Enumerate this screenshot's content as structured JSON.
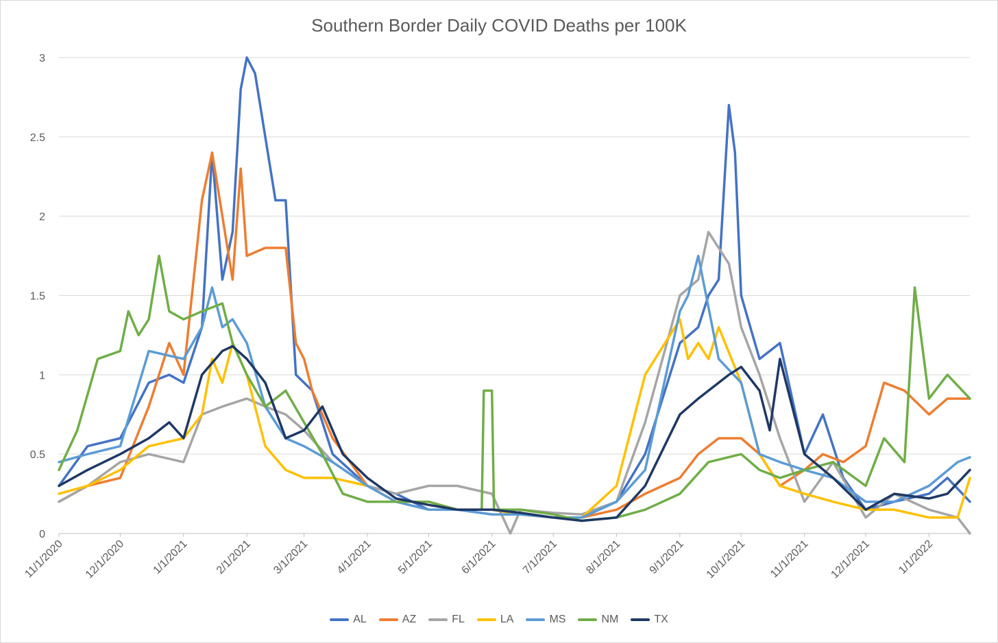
{
  "chart_data": {
    "type": "line",
    "title": "Southern Border Daily COVID Deaths per 100K",
    "xlabel": "",
    "ylabel": "",
    "ylim": [
      0,
      3
    ],
    "y_ticks": [
      "0",
      "0.5",
      "1",
      "1.5",
      "2",
      "2.5",
      "3"
    ],
    "x_tick_labels": [
      "11/1/2020",
      "12/1/2020",
      "1/1/2021",
      "2/1/2021",
      "3/1/2021",
      "4/1/2021",
      "5/1/2021",
      "6/1/2021",
      "7/1/2021",
      "8/1/2021",
      "9/1/2021",
      "10/1/2021",
      "11/1/2021",
      "12/1/2021",
      "1/1/2022"
    ],
    "x_start": "11/1/2020",
    "x_end": "1/21/2022",
    "grid": true,
    "legend_position": "bottom",
    "series": [
      {
        "name": "AL",
        "color": "#4472C4",
        "x": [
          "11/1/2020",
          "11/15/2020",
          "12/1/2020",
          "12/15/2020",
          "12/25/2020",
          "1/1/2021",
          "1/10/2021",
          "1/15/2021",
          "1/20/2021",
          "1/25/2021",
          "1/29/2021",
          "2/1/2021",
          "2/5/2021",
          "2/10/2021",
          "2/15/2021",
          "2/20/2021",
          "2/25/2021",
          "3/5/2021",
          "3/15/2021",
          "4/1/2021",
          "4/15/2021",
          "5/1/2021",
          "5/15/2021",
          "6/1/2021",
          "6/15/2021",
          "7/1/2021",
          "7/15/2021",
          "8/1/2021",
          "8/15/2021",
          "9/1/2021",
          "9/10/2021",
          "9/15/2021",
          "9/20/2021",
          "9/25/2021",
          "9/28/2021",
          "10/1/2021",
          "10/10/2021",
          "10/20/2021",
          "11/1/2021",
          "11/10/2021",
          "11/20/2021",
          "12/1/2021",
          "12/15/2021",
          "1/1/2022",
          "1/10/2022",
          "1/21/2022"
        ],
        "y": [
          0.3,
          0.55,
          0.6,
          0.95,
          1.0,
          0.95,
          1.3,
          2.4,
          1.6,
          1.9,
          2.8,
          3.0,
          2.9,
          2.5,
          2.1,
          2.1,
          1.0,
          0.9,
          0.5,
          0.3,
          0.25,
          0.15,
          0.15,
          0.12,
          0.12,
          0.1,
          0.1,
          0.2,
          0.5,
          1.2,
          1.3,
          1.5,
          1.6,
          2.7,
          2.4,
          1.5,
          1.1,
          1.2,
          0.5,
          0.75,
          0.35,
          0.15,
          0.2,
          0.25,
          0.35,
          0.2
        ]
      },
      {
        "name": "AZ",
        "color": "#ED7D31",
        "x": [
          "11/1/2020",
          "11/15/2020",
          "12/1/2020",
          "12/15/2020",
          "12/25/2020",
          "1/1/2021",
          "1/10/2021",
          "1/15/2021",
          "1/20/2021",
          "1/25/2021",
          "1/29/2021",
          "2/1/2021",
          "2/10/2021",
          "2/20/2021",
          "2/25/2021",
          "3/1/2021",
          "3/5/2021",
          "3/15/2021",
          "4/1/2021",
          "4/15/2021",
          "5/1/2021",
          "5/15/2021",
          "6/1/2021",
          "6/15/2021",
          "7/1/2021",
          "7/15/2021",
          "8/1/2021",
          "8/15/2021",
          "9/1/2021",
          "9/10/2021",
          "9/20/2021",
          "10/1/2021",
          "10/10/2021",
          "10/20/2021",
          "11/1/2021",
          "11/10/2021",
          "11/20/2021",
          "12/1/2021",
          "12/10/2021",
          "12/20/2021",
          "1/1/2022",
          "1/10/2022",
          "1/21/2022"
        ],
        "y": [
          0.2,
          0.3,
          0.35,
          0.8,
          1.2,
          1.0,
          2.1,
          2.4,
          2.0,
          1.6,
          2.3,
          1.75,
          1.8,
          1.8,
          1.2,
          1.1,
          0.9,
          0.6,
          0.3,
          0.2,
          0.2,
          0.15,
          0.15,
          0.12,
          0.1,
          0.1,
          0.15,
          0.25,
          0.35,
          0.5,
          0.6,
          0.6,
          0.5,
          0.3,
          0.4,
          0.5,
          0.45,
          0.55,
          0.95,
          0.9,
          0.75,
          0.85,
          0.85
        ]
      },
      {
        "name": "FL",
        "color": "#A5A5A5",
        "x": [
          "11/1/2020",
          "11/15/2020",
          "12/1/2020",
          "12/15/2020",
          "1/1/2021",
          "1/10/2021",
          "1/20/2021",
          "2/1/2021",
          "2/10/2021",
          "2/20/2021",
          "3/1/2021",
          "3/15/2021",
          "4/1/2021",
          "4/15/2021",
          "5/1/2021",
          "5/15/2021",
          "6/1/2021",
          "6/10/2021",
          "6/15/2021",
          "7/1/2021",
          "7/15/2021",
          "8/1/2021",
          "8/15/2021",
          "9/1/2021",
          "9/10/2021",
          "9/15/2021",
          "9/25/2021",
          "10/1/2021",
          "10/10/2021",
          "10/20/2021",
          "11/1/2021",
          "11/15/2021",
          "12/1/2021",
          "12/15/2021",
          "1/1/2022",
          "1/15/2022",
          "1/21/2022"
        ],
        "y": [
          0.2,
          0.3,
          0.45,
          0.5,
          0.45,
          0.75,
          0.8,
          0.85,
          0.8,
          0.75,
          0.65,
          0.45,
          0.3,
          0.25,
          0.3,
          0.3,
          0.25,
          0.0,
          0.15,
          0.13,
          0.12,
          0.2,
          0.7,
          1.5,
          1.6,
          1.9,
          1.7,
          1.3,
          1.0,
          0.6,
          0.2,
          0.45,
          0.1,
          0.25,
          0.15,
          0.1,
          0.0
        ]
      },
      {
        "name": "LA",
        "color": "#FFC000",
        "x": [
          "11/1/2020",
          "11/15/2020",
          "12/1/2020",
          "12/15/2020",
          "1/1/2021",
          "1/10/2021",
          "1/15/2021",
          "1/20/2021",
          "1/25/2021",
          "2/1/2021",
          "2/10/2021",
          "2/20/2021",
          "3/1/2021",
          "3/15/2021",
          "4/1/2021",
          "4/15/2021",
          "5/1/2021",
          "5/15/2021",
          "6/1/2021",
          "6/15/2021",
          "7/1/2021",
          "7/15/2021",
          "8/1/2021",
          "8/15/2021",
          "9/1/2021",
          "9/5/2021",
          "9/10/2021",
          "9/15/2021",
          "9/20/2021",
          "10/1/2021",
          "10/10/2021",
          "10/20/2021",
          "11/1/2021",
          "11/15/2021",
          "12/1/2021",
          "12/15/2021",
          "1/1/2022",
          "1/15/2022",
          "1/21/2022"
        ],
        "y": [
          0.25,
          0.3,
          0.4,
          0.55,
          0.6,
          0.75,
          1.1,
          0.95,
          1.2,
          1.0,
          0.55,
          0.4,
          0.35,
          0.35,
          0.3,
          0.2,
          0.15,
          0.15,
          0.15,
          0.12,
          0.1,
          0.1,
          0.3,
          1.0,
          1.35,
          1.1,
          1.2,
          1.1,
          1.3,
          0.95,
          0.5,
          0.3,
          0.25,
          0.2,
          0.15,
          0.15,
          0.1,
          0.1,
          0.35
        ]
      },
      {
        "name": "MS",
        "color": "#5B9BD5",
        "x": [
          "11/1/2020",
          "11/15/2020",
          "12/1/2020",
          "12/15/2020",
          "1/1/2021",
          "1/10/2021",
          "1/15/2021",
          "1/20/2021",
          "1/25/2021",
          "2/1/2021",
          "2/10/2021",
          "2/20/2021",
          "3/1/2021",
          "3/15/2021",
          "4/1/2021",
          "4/15/2021",
          "5/1/2021",
          "5/15/2021",
          "6/1/2021",
          "6/15/2021",
          "7/1/2021",
          "7/15/2021",
          "8/1/2021",
          "8/15/2021",
          "9/1/2021",
          "9/5/2021",
          "9/10/2021",
          "9/20/2021",
          "10/1/2021",
          "10/10/2021",
          "10/20/2021",
          "11/1/2021",
          "11/15/2021",
          "12/1/2021",
          "12/15/2021",
          "1/1/2022",
          "1/15/2022",
          "1/21/2022"
        ],
        "y": [
          0.45,
          0.5,
          0.55,
          1.15,
          1.1,
          1.3,
          1.55,
          1.3,
          1.35,
          1.2,
          0.8,
          0.6,
          0.55,
          0.45,
          0.3,
          0.2,
          0.15,
          0.15,
          0.12,
          0.12,
          0.1,
          0.1,
          0.2,
          0.4,
          1.4,
          1.5,
          1.75,
          1.1,
          0.95,
          0.5,
          0.45,
          0.4,
          0.35,
          0.2,
          0.2,
          0.3,
          0.45,
          0.48
        ]
      },
      {
        "name": "NM",
        "color": "#70AD47",
        "x": [
          "11/1/2020",
          "11/10/2020",
          "11/20/2020",
          "12/1/2020",
          "12/5/2020",
          "12/10/2020",
          "12/15/2020",
          "12/20/2020",
          "12/25/2020",
          "1/1/2021",
          "1/10/2021",
          "1/20/2021",
          "1/25/2021",
          "2/1/2021",
          "2/10/2021",
          "2/20/2021",
          "3/1/2021",
          "3/10/2021",
          "3/20/2021",
          "4/1/2021",
          "4/15/2021",
          "5/1/2021",
          "5/15/2021",
          "5/27/2021",
          "5/28/2021",
          "6/1/2021",
          "6/2/2021",
          "6/15/2021",
          "7/1/2021",
          "7/15/2021",
          "8/1/2021",
          "8/15/2021",
          "9/1/2021",
          "9/15/2021",
          "10/1/2021",
          "10/10/2021",
          "10/20/2021",
          "11/1/2021",
          "11/15/2021",
          "12/1/2021",
          "12/10/2021",
          "12/20/2021",
          "12/25/2021",
          "1/1/2022",
          "1/10/2022",
          "1/21/2022"
        ],
        "y": [
          0.4,
          0.65,
          1.1,
          1.15,
          1.4,
          1.25,
          1.35,
          1.75,
          1.4,
          1.35,
          1.4,
          1.45,
          1.2,
          1.0,
          0.8,
          0.9,
          0.7,
          0.5,
          0.25,
          0.2,
          0.2,
          0.2,
          0.15,
          0.15,
          0.9,
          0.9,
          0.15,
          0.15,
          0.12,
          0.08,
          0.1,
          0.15,
          0.25,
          0.45,
          0.5,
          0.4,
          0.35,
          0.4,
          0.45,
          0.3,
          0.6,
          0.45,
          1.55,
          0.85,
          1.0,
          0.85
        ]
      },
      {
        "name": "TX",
        "color": "#1F3864",
        "x": [
          "11/1/2020",
          "11/15/2020",
          "12/1/2020",
          "12/15/2020",
          "12/25/2020",
          "1/1/2021",
          "1/10/2021",
          "1/20/2021",
          "1/25/2021",
          "2/1/2021",
          "2/10/2021",
          "2/20/2021",
          "3/1/2021",
          "3/10/2021",
          "3/20/2021",
          "4/1/2021",
          "4/15/2021",
          "5/1/2021",
          "5/15/2021",
          "6/1/2021",
          "6/15/2021",
          "7/1/2021",
          "7/15/2021",
          "8/1/2021",
          "8/15/2021",
          "9/1/2021",
          "9/10/2021",
          "9/20/2021",
          "9/25/2021",
          "10/1/2021",
          "10/10/2021",
          "10/15/2021",
          "10/20/2021",
          "11/1/2021",
          "11/15/2021",
          "12/1/2021",
          "12/15/2021",
          "1/1/2022",
          "1/10/2022",
          "1/21/2022"
        ],
        "y": [
          0.3,
          0.4,
          0.5,
          0.6,
          0.7,
          0.6,
          1.0,
          1.15,
          1.18,
          1.1,
          0.95,
          0.6,
          0.65,
          0.8,
          0.5,
          0.35,
          0.22,
          0.18,
          0.15,
          0.15,
          0.13,
          0.1,
          0.08,
          0.1,
          0.3,
          0.75,
          0.85,
          0.95,
          1.0,
          1.05,
          0.9,
          0.65,
          1.1,
          0.5,
          0.35,
          0.15,
          0.25,
          0.22,
          0.25,
          0.4
        ]
      }
    ]
  }
}
